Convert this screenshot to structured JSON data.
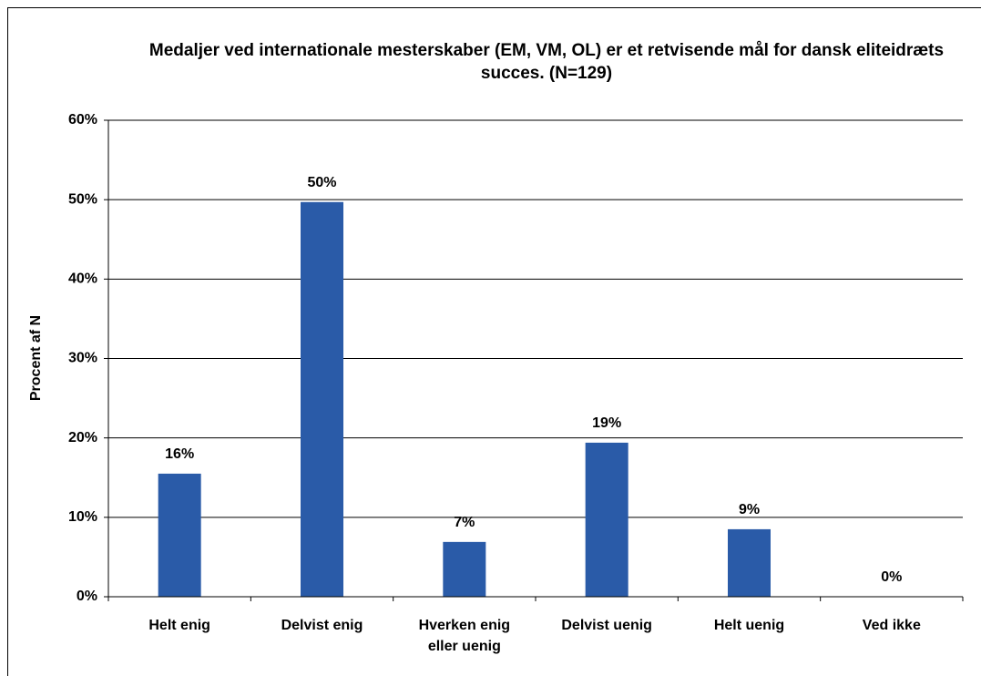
{
  "chart_data": {
    "type": "bar",
    "title": "Medaljer ved internationale mesterskaber (EM, VM, OL) er et retvisende mål for dansk eliteidræts succes. (N=129)",
    "ylabel": "Procent af N",
    "categories": [
      "Helt enig",
      "Delvist enig",
      "Hverken enig eller uenig",
      "Delvist uenig",
      "Helt uenig",
      "Ved ikke"
    ],
    "values": [
      15.5,
      49.7,
      6.9,
      19.4,
      8.5,
      0
    ],
    "value_labels": [
      "16%",
      "50%",
      "7%",
      "19%",
      "9%",
      "0%"
    ],
    "color": "#2a5ba8",
    "ylim": [
      0,
      60
    ],
    "yticks": [
      {
        "value": 0,
        "label": "0%"
      },
      {
        "value": 10,
        "label": "10%"
      },
      {
        "value": 20,
        "label": "20%"
      },
      {
        "value": 30,
        "label": "30%"
      },
      {
        "value": 40,
        "label": "40%"
      },
      {
        "value": 50,
        "label": "50%"
      },
      {
        "value": 60,
        "label": "60%"
      }
    ],
    "grid": true
  }
}
